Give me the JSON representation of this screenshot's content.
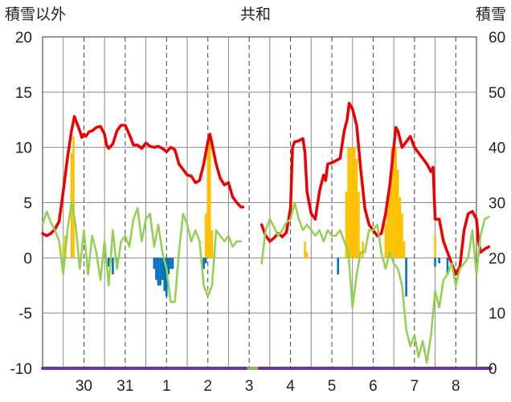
{
  "chart_data": {
    "type": "line",
    "title": "共和",
    "left_axis_label": "積雪以外",
    "right_axis_label": "積雪",
    "ylim_left": [
      -10,
      20
    ],
    "ylim_right": [
      0,
      60
    ],
    "yticks_left": [
      "20",
      "15",
      "10",
      "5",
      "0",
      "-5",
      "-10"
    ],
    "yticks_right": [
      "60",
      "50",
      "40",
      "30",
      "20",
      "10",
      "0"
    ],
    "x_labels": [
      "30",
      "31",
      "1",
      "2",
      "3",
      "4",
      "5",
      "6",
      "7",
      "8"
    ],
    "x_label_days": [
      0.5,
      1.5,
      2.5,
      3.5,
      4.5,
      5.5,
      6.5,
      7.5,
      8.5,
      9.5
    ],
    "x_range_days": [
      -0.5,
      10.0
    ],
    "grid": true,
    "colors": {
      "temperature": "#ee0000",
      "green_line": "#92d050",
      "positive_bar": "#ffc000",
      "negative_bar": "#0070c0",
      "snow_depth": "#7030a0"
    },
    "series": [
      {
        "type": "line",
        "color_key": "temperature",
        "points": [
          [
            -0.5,
            2.2
          ],
          [
            -0.4,
            2.0
          ],
          [
            -0.3,
            2.2
          ],
          [
            -0.2,
            2.6
          ],
          [
            -0.1,
            3.3
          ],
          [
            0.0,
            6.0
          ],
          [
            0.1,
            9.0
          ],
          [
            0.2,
            11.5
          ],
          [
            0.27,
            12.8
          ],
          [
            0.33,
            12.2
          ],
          [
            0.4,
            11.5
          ],
          [
            0.45,
            10.9
          ],
          [
            0.5,
            11.2
          ],
          [
            0.55,
            11.0
          ],
          [
            0.62,
            11.4
          ],
          [
            0.7,
            11.5
          ],
          [
            0.8,
            11.8
          ],
          [
            0.9,
            11.9
          ],
          [
            1.0,
            11.2
          ],
          [
            1.05,
            10.2
          ],
          [
            1.1,
            9.9
          ],
          [
            1.2,
            10.3
          ],
          [
            1.3,
            11.5
          ],
          [
            1.4,
            12.0
          ],
          [
            1.5,
            12.0
          ],
          [
            1.55,
            11.6
          ],
          [
            1.62,
            11.0
          ],
          [
            1.7,
            10.2
          ],
          [
            1.8,
            10.2
          ],
          [
            1.9,
            9.9
          ],
          [
            2.0,
            10.4
          ],
          [
            2.1,
            10.1
          ],
          [
            2.2,
            10.0
          ],
          [
            2.3,
            10.1
          ],
          [
            2.4,
            9.9
          ],
          [
            2.5,
            9.6
          ],
          [
            2.6,
            10.0
          ],
          [
            2.7,
            9.8
          ],
          [
            2.8,
            8.5
          ],
          [
            2.9,
            8.0
          ],
          [
            3.0,
            7.5
          ],
          [
            3.1,
            7.4
          ],
          [
            3.2,
            6.8
          ],
          [
            3.3,
            7.0
          ],
          [
            3.4,
            8.5
          ],
          [
            3.5,
            10.5
          ],
          [
            3.55,
            11.2
          ],
          [
            3.6,
            10.3
          ],
          [
            3.7,
            8.5
          ],
          [
            3.8,
            7.2
          ],
          [
            3.9,
            6.6
          ],
          [
            4.0,
            6.8
          ],
          [
            4.1,
            5.5
          ],
          [
            4.2,
            5.0
          ],
          [
            4.3,
            4.6
          ],
          [
            4.35,
            4.6
          ]
        ],
        "gap": true,
        "points2": [
          [
            4.8,
            3.0
          ],
          [
            4.9,
            2.0
          ],
          [
            5.0,
            1.5
          ],
          [
            5.1,
            1.8
          ],
          [
            5.2,
            2.2
          ],
          [
            5.3,
            1.9
          ],
          [
            5.4,
            2.3
          ],
          [
            5.5,
            4.5
          ],
          [
            5.55,
            10.0
          ],
          [
            5.6,
            10.5
          ],
          [
            5.7,
            10.6
          ],
          [
            5.8,
            10.8
          ],
          [
            5.85,
            9.5
          ],
          [
            5.9,
            6.0
          ],
          [
            6.0,
            4.0
          ],
          [
            6.1,
            3.5
          ],
          [
            6.2,
            6.0
          ],
          [
            6.3,
            7.5
          ],
          [
            6.35,
            7.0
          ],
          [
            6.4,
            8.5
          ],
          [
            6.5,
            8.6
          ],
          [
            6.6,
            8.8
          ],
          [
            6.7,
            9.0
          ],
          [
            6.8,
            11.5
          ],
          [
            6.87,
            12.5
          ],
          [
            6.92,
            14.0
          ],
          [
            7.0,
            13.5
          ],
          [
            7.1,
            12.0
          ],
          [
            7.2,
            8.0
          ],
          [
            7.3,
            4.5
          ],
          [
            7.4,
            3.0
          ],
          [
            7.5,
            2.5
          ],
          [
            7.6,
            2.0
          ],
          [
            7.7,
            2.2
          ],
          [
            7.8,
            4.0
          ],
          [
            7.9,
            6.5
          ],
          [
            8.0,
            10.0
          ],
          [
            8.05,
            11.8
          ],
          [
            8.1,
            11.5
          ],
          [
            8.2,
            10.0
          ],
          [
            8.3,
            10.5
          ],
          [
            8.4,
            11.0
          ],
          [
            8.5,
            10.0
          ],
          [
            8.6,
            9.5
          ],
          [
            8.7,
            9.0
          ],
          [
            8.8,
            8.5
          ],
          [
            8.9,
            7.8
          ],
          [
            8.95,
            8.2
          ],
          [
            9.0,
            3.5
          ],
          [
            9.1,
            3.5
          ],
          [
            9.2,
            1.5
          ],
          [
            9.3,
            0.5
          ],
          [
            9.4,
            -0.5
          ],
          [
            9.5,
            -1.5
          ],
          [
            9.6,
            -0.8
          ],
          [
            9.7,
            2.5
          ],
          [
            9.8,
            4.0
          ],
          [
            9.9,
            4.2
          ],
          [
            10.0,
            3.5
          ],
          [
            10.05,
            1.5
          ],
          [
            10.1,
            0.5
          ],
          [
            10.2,
            0.8
          ],
          [
            10.3,
            1.0
          ]
        ]
      },
      {
        "type": "line",
        "color_key": "green_line",
        "points": [
          [
            -0.5,
            3.0
          ],
          [
            -0.4,
            4.2
          ],
          [
            -0.3,
            3.2
          ],
          [
            -0.2,
            2.5
          ],
          [
            -0.1,
            1.5
          ],
          [
            0.0,
            -1.5
          ],
          [
            0.1,
            2.5
          ],
          [
            0.2,
            5.0
          ],
          [
            0.3,
            3.0
          ],
          [
            0.4,
            -1.0
          ],
          [
            0.5,
            2.5
          ],
          [
            0.6,
            -1.5
          ],
          [
            0.7,
            2.0
          ],
          [
            0.8,
            0.5
          ],
          [
            0.9,
            -2.0
          ],
          [
            1.0,
            1.5
          ],
          [
            1.1,
            -2.5
          ],
          [
            1.2,
            2.5
          ],
          [
            1.3,
            -1.0
          ],
          [
            1.4,
            1.5
          ],
          [
            1.5,
            2.0
          ],
          [
            1.6,
            1.0
          ],
          [
            1.7,
            3.5
          ],
          [
            1.8,
            4.5
          ],
          [
            1.9,
            1.5
          ],
          [
            2.0,
            3.5
          ],
          [
            2.1,
            4.0
          ],
          [
            2.2,
            1.0
          ],
          [
            2.3,
            3.0
          ],
          [
            2.4,
            0.5
          ],
          [
            2.5,
            -1.0
          ],
          [
            2.6,
            -4.0
          ],
          [
            2.7,
            -4.0
          ],
          [
            2.8,
            0.5
          ],
          [
            2.9,
            4.0
          ],
          [
            3.0,
            3.0
          ],
          [
            3.1,
            1.5
          ],
          [
            3.2,
            2.5
          ],
          [
            3.3,
            1.5
          ],
          [
            3.4,
            -2.5
          ],
          [
            3.5,
            -3.5
          ],
          [
            3.6,
            -2.5
          ],
          [
            3.7,
            2.5
          ],
          [
            3.8,
            2.0
          ],
          [
            3.9,
            1.5
          ],
          [
            4.0,
            2.0
          ],
          [
            4.1,
            1.0
          ],
          [
            4.2,
            1.5
          ],
          [
            4.3,
            1.5
          ]
        ],
        "points2": [
          [
            4.8,
            -0.5
          ],
          [
            4.9,
            2.5
          ],
          [
            5.0,
            3.5
          ],
          [
            5.1,
            2.8
          ],
          [
            5.2,
            2.0
          ],
          [
            5.3,
            2.5
          ],
          [
            5.4,
            3.2
          ],
          [
            5.5,
            3.5
          ],
          [
            5.6,
            5.0
          ],
          [
            5.7,
            3.5
          ],
          [
            5.8,
            2.5
          ],
          [
            5.9,
            3.0
          ],
          [
            6.0,
            2.5
          ],
          [
            6.1,
            2.0
          ],
          [
            6.2,
            2.5
          ],
          [
            6.3,
            1.5
          ],
          [
            6.4,
            2.5
          ],
          [
            6.5,
            2.0
          ],
          [
            6.6,
            2.0
          ],
          [
            6.7,
            2.5
          ],
          [
            6.8,
            1.5
          ],
          [
            6.9,
            0.5
          ],
          [
            7.0,
            -4.5
          ],
          [
            7.1,
            -1.5
          ],
          [
            7.2,
            0.5
          ],
          [
            7.3,
            0.5
          ],
          [
            7.4,
            2.5
          ],
          [
            7.5,
            2.5
          ],
          [
            7.6,
            3.0
          ],
          [
            7.7,
            0.5
          ],
          [
            7.8,
            -1.0
          ],
          [
            7.9,
            0.5
          ],
          [
            8.0,
            -0.5
          ],
          [
            8.1,
            -1.0
          ],
          [
            8.2,
            -2.5
          ],
          [
            8.3,
            -6.5
          ],
          [
            8.4,
            -8.0
          ],
          [
            8.5,
            -7.0
          ],
          [
            8.6,
            -9.0
          ],
          [
            8.7,
            -7.5
          ],
          [
            8.8,
            -9.5
          ],
          [
            8.9,
            -7.0
          ],
          [
            9.0,
            -3.0
          ],
          [
            9.1,
            -4.5
          ],
          [
            9.2,
            -2.0
          ],
          [
            9.3,
            -1.5
          ],
          [
            9.4,
            -0.5
          ],
          [
            9.5,
            -2.5
          ],
          [
            9.6,
            -1.0
          ],
          [
            9.7,
            -0.5
          ],
          [
            9.8,
            0.0
          ],
          [
            9.9,
            2.5
          ],
          [
            10.0,
            -1.5
          ],
          [
            10.1,
            2.0
          ],
          [
            10.2,
            3.5
          ],
          [
            10.3,
            3.7
          ]
        ]
      },
      {
        "type": "bar",
        "color_key": "positive_bar",
        "bars": [
          [
            0.0,
            1.2
          ],
          [
            0.05,
            2.0
          ],
          [
            0.2,
            9.5
          ],
          [
            0.25,
            11.0
          ],
          [
            3.45,
            4.0
          ],
          [
            3.5,
            10.0
          ],
          [
            3.55,
            11.0
          ],
          [
            3.6,
            2.5
          ],
          [
            5.85,
            1.5
          ],
          [
            5.9,
            0.5
          ],
          [
            6.85,
            6.0
          ],
          [
            6.9,
            10.0
          ],
          [
            6.95,
            10.0
          ],
          [
            7.0,
            10.0
          ],
          [
            7.05,
            10.0
          ],
          [
            7.1,
            9.0
          ],
          [
            7.15,
            6.0
          ],
          [
            7.25,
            1.5
          ],
          [
            7.8,
            3.0
          ],
          [
            7.85,
            5.0
          ],
          [
            7.9,
            7.0
          ],
          [
            7.95,
            10.0
          ],
          [
            8.0,
            10.0
          ],
          [
            8.05,
            10.0
          ],
          [
            8.1,
            8.0
          ],
          [
            8.15,
            5.5
          ],
          [
            8.2,
            4.0
          ],
          [
            8.25,
            1.5
          ],
          [
            9.0,
            2.0
          ]
        ]
      },
      {
        "type": "bar",
        "color_key": "negative_bar",
        "bars": [
          [
            1.1,
            -0.8
          ],
          [
            1.2,
            -1.5
          ],
          [
            1.3,
            -0.5
          ],
          [
            2.2,
            -1.0
          ],
          [
            2.25,
            -2.0
          ],
          [
            2.3,
            -2.5
          ],
          [
            2.35,
            -2.5
          ],
          [
            2.4,
            -2.0
          ],
          [
            2.45,
            -3.0
          ],
          [
            2.5,
            -3.5
          ],
          [
            2.55,
            -1.5
          ],
          [
            2.6,
            -1.0
          ],
          [
            2.65,
            -1.0
          ],
          [
            3.4,
            -1.0
          ],
          [
            3.45,
            -0.5
          ],
          [
            6.65,
            -1.5
          ],
          [
            8.3,
            -3.5
          ],
          [
            9.0,
            -0.8
          ],
          [
            9.1,
            -0.5
          ],
          [
            9.3,
            -1.5
          ]
        ]
      },
      {
        "type": "line",
        "color_key": "snow_depth",
        "axis": "right",
        "points": [
          [
            -0.5,
            0.0
          ],
          [
            4.45,
            0.0
          ]
        ],
        "points2": [
          [
            4.75,
            0.0
          ],
          [
            10.35,
            0.0
          ]
        ],
        "gap_color": "#8db360"
      }
    ]
  }
}
